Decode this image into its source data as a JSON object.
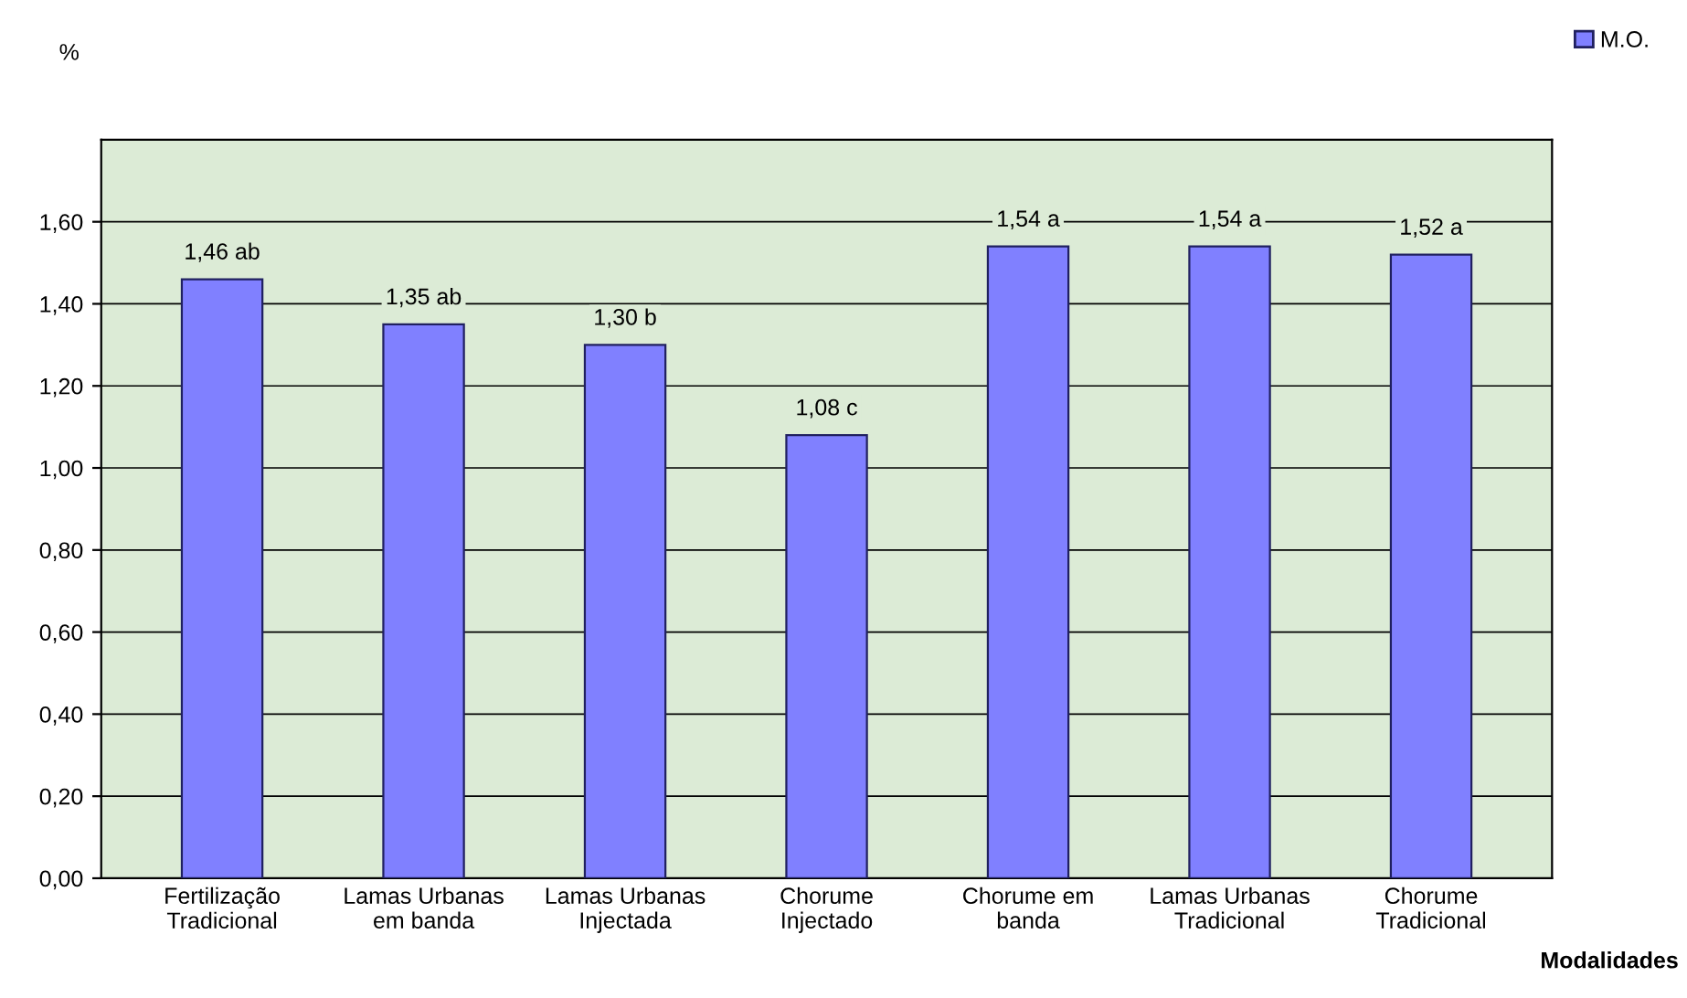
{
  "chart_data": {
    "type": "bar",
    "categories": [
      "Fertilização\nTradicional",
      "Lamas Urbanas\nem banda",
      "Lamas Urbanas\nInjectada",
      "Chorume\nInjectado",
      "Chorume em\nbanda",
      "Lamas Urbanas\nTradicional",
      "Chorume\nTradicional"
    ],
    "series": [
      {
        "name": "M.O.",
        "color": "#8080ff",
        "values": [
          1.46,
          1.35,
          1.3,
          1.08,
          1.54,
          1.54,
          1.52
        ],
        "value_labels": [
          "1,46 ab",
          "1,35 ab",
          "1,30 b",
          "1,08 c",
          "1,54 a",
          "1,54 a",
          "1,52 a"
        ]
      }
    ],
    "ylabel": "%",
    "xlabel": "Modalidades",
    "ylim": [
      0,
      1.8
    ],
    "yticks": [
      {
        "value": 0,
        "label": "0,00"
      },
      {
        "value": 0.2,
        "label": "0,20"
      },
      {
        "value": 0.4,
        "label": "0,40"
      },
      {
        "value": 0.6,
        "label": "0,60"
      },
      {
        "value": 0.8,
        "label": "0,80"
      },
      {
        "value": 1.0,
        "label": "1,00"
      },
      {
        "value": 1.2,
        "label": "1,20"
      },
      {
        "value": 1.4,
        "label": "1,40"
      },
      {
        "value": 1.6,
        "label": "1,60"
      }
    ],
    "grid": "y",
    "legend": "top right"
  }
}
